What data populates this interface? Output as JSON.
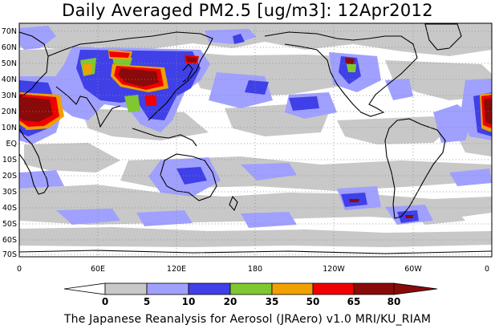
{
  "title": "Daily Averaged PM2.5 [ug/m3]: 12Apr2012",
  "footer": "The Japanese Reanalysis for Aerosol (JRAero) v1.0 MRI/KU_RIAM",
  "lat_labels": [
    "70N",
    "60N",
    "50N",
    "40N",
    "30N",
    "20N",
    "10N",
    "EQ",
    "10S",
    "20S",
    "30S",
    "40S",
    "50S",
    "60S",
    "70S"
  ],
  "lon_labels": [
    "0",
    "60E",
    "120E",
    "180",
    "120W",
    "60W",
    "0"
  ],
  "colorbar": {
    "ticks": [
      "0",
      "5",
      "10",
      "20",
      "35",
      "50",
      "65",
      "80"
    ],
    "colors": [
      "#ffffff",
      "#c8c8c8",
      "#a0a0ff",
      "#4040e8",
      "#80c830",
      "#f0a000",
      "#f00000",
      "#8a0a0a"
    ]
  },
  "colors": {
    "gray": "#c8c8c8",
    "light_blue": "#a0a0ff",
    "blue": "#4040e8",
    "green": "#80c830",
    "orange": "#f0a000",
    "red": "#f00000",
    "dark_red": "#8a0a0a",
    "coast": "#000000"
  }
}
